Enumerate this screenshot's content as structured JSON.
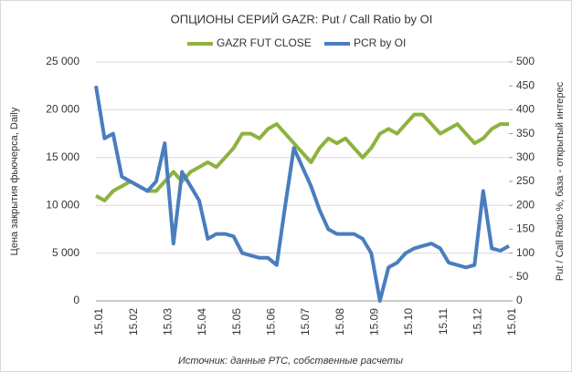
{
  "chart_data": {
    "type": "line",
    "title": "ОПЦИОНЫ СЕРИЙ GAZR: Put / Call Ratio by OI",
    "ylabel": "Цена закрытия фьючерса, Daily",
    "y2label": "Put / Call Ratio %, база - открытый интерес",
    "source": "Источник: данные РТС, собственные расчеты",
    "categories": [
      "15.01",
      null,
      null,
      null,
      "15.02",
      null,
      null,
      null,
      "15.03",
      null,
      null,
      null,
      "15.04",
      null,
      null,
      null,
      "15.05",
      null,
      null,
      null,
      "15.06",
      null,
      null,
      null,
      "15.07",
      null,
      null,
      null,
      "15.08",
      null,
      null,
      null,
      "15.09",
      null,
      null,
      null,
      "15.10",
      null,
      null,
      null,
      "15.11",
      null,
      null,
      null,
      "15.12",
      null,
      null,
      null,
      "15.01"
    ],
    "series": [
      {
        "name": "GAZR FUT CLOSE",
        "color": "#8db33f",
        "axis": "y",
        "values": [
          11000,
          10500,
          11500,
          12000,
          12500,
          12000,
          11500,
          11500,
          12500,
          13500,
          12500,
          13500,
          14000,
          14500,
          14000,
          15000,
          16000,
          17500,
          17500,
          17000,
          18000,
          18500,
          17500,
          16500,
          15500,
          14500,
          16000,
          17000,
          16500,
          17000,
          16000,
          15000,
          16000,
          17500,
          18000,
          17500,
          18500,
          19500,
          19500,
          18500,
          17500,
          18000,
          18500,
          17500,
          16500,
          17000,
          18000,
          18500,
          18500
        ]
      },
      {
        "name": "PCR by OI",
        "color": "#4a7dbf",
        "axis": "y2",
        "values": [
          450,
          340,
          350,
          260,
          250,
          240,
          230,
          250,
          330,
          120,
          270,
          240,
          210,
          130,
          140,
          140,
          135,
          100,
          95,
          90,
          90,
          75,
          200,
          320,
          280,
          240,
          190,
          150,
          140,
          140,
          140,
          130,
          100,
          0,
          70,
          80,
          100,
          110,
          115,
          120,
          110,
          80,
          75,
          70,
          75,
          230,
          110,
          105,
          115
        ]
      }
    ],
    "ylim": [
      0,
      25000
    ],
    "yticks": [
      0,
      {
        "value": 5000,
        "label": "5 000"
      },
      {
        "value": 10000,
        "label": "10 000"
      },
      {
        "value": 15000,
        "label": "15 000"
      },
      {
        "value": 20000,
        "label": "20 000"
      },
      {
        "value": 25000,
        "label": "25 000"
      }
    ],
    "y2lim": [
      0,
      500
    ],
    "y2ticks": [
      0,
      50,
      100,
      150,
      200,
      250,
      300,
      350,
      400,
      450,
      500
    ]
  }
}
